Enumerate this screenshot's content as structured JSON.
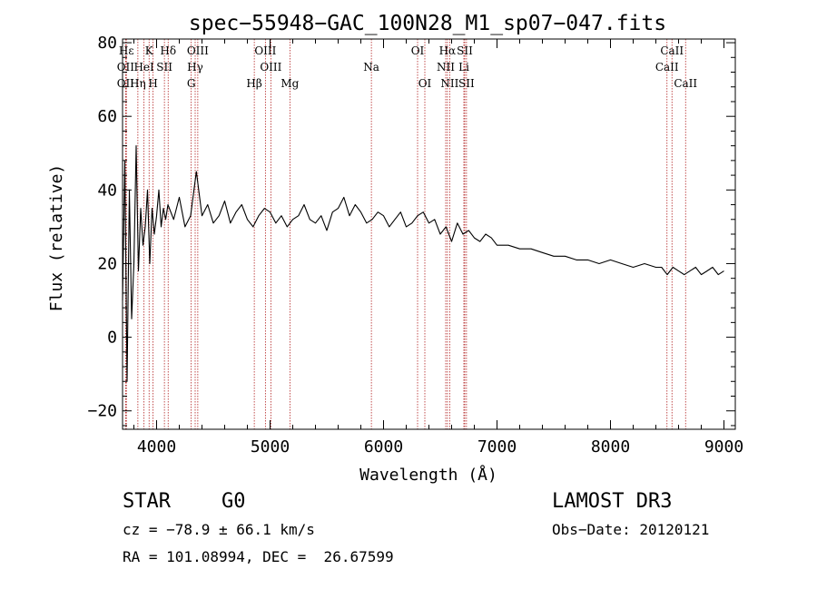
{
  "chart_data": {
    "type": "line",
    "title": "spec−55948−GAC_100N28_M1_sp07−047.fits",
    "xlabel": "Wavelength (Å)",
    "ylabel": "Flux (relative)",
    "xlim": [
      3700,
      9100
    ],
    "ylim": [
      -25,
      81
    ],
    "x_ticks": [
      4000,
      5000,
      6000,
      7000,
      8000,
      9000
    ],
    "y_ticks": [
      -20,
      0,
      20,
      40,
      60,
      80
    ],
    "x_tick_labels": [
      "4000",
      "5000",
      "6000",
      "7000",
      "8000",
      "9000"
    ],
    "y_tick_labels": [
      "−20",
      "0",
      "20",
      "40",
      "60",
      "80"
    ],
    "line_color": "#000000",
    "marker_color": "#b22222",
    "series": [
      {
        "name": "flux",
        "x": [
          3700,
          3720,
          3740,
          3760,
          3780,
          3800,
          3820,
          3840,
          3860,
          3880,
          3900,
          3920,
          3940,
          3960,
          3980,
          4000,
          4020,
          4040,
          4060,
          4080,
          4100,
          4150,
          4200,
          4250,
          4300,
          4350,
          4400,
          4450,
          4500,
          4550,
          4600,
          4650,
          4700,
          4750,
          4800,
          4850,
          4900,
          4950,
          5000,
          5050,
          5100,
          5150,
          5200,
          5250,
          5300,
          5350,
          5400,
          5450,
          5500,
          5550,
          5600,
          5650,
          5700,
          5750,
          5800,
          5850,
          5900,
          5950,
          6000,
          6050,
          6100,
          6150,
          6200,
          6250,
          6300,
          6350,
          6400,
          6450,
          6500,
          6550,
          6600,
          6650,
          6700,
          6750,
          6800,
          6850,
          6900,
          6950,
          7000,
          7100,
          7200,
          7300,
          7400,
          7500,
          7600,
          7700,
          7800,
          7900,
          8000,
          8100,
          8200,
          8300,
          8400,
          8450,
          8500,
          8550,
          8600,
          8650,
          8700,
          8750,
          8800,
          8850,
          8900,
          8950,
          9000
        ],
        "y": [
          10,
          48,
          -12,
          40,
          5,
          20,
          52,
          18,
          35,
          25,
          30,
          40,
          20,
          35,
          28,
          33,
          40,
          30,
          35,
          32,
          36,
          32,
          38,
          30,
          33,
          45,
          33,
          36,
          31,
          33,
          37,
          31,
          34,
          36,
          32,
          30,
          33,
          35,
          34,
          31,
          33,
          30,
          32,
          33,
          36,
          32,
          31,
          33,
          29,
          34,
          35,
          38,
          33,
          36,
          34,
          31,
          32,
          34,
          33,
          30,
          32,
          34,
          30,
          31,
          33,
          34,
          31,
          32,
          28,
          30,
          26,
          31,
          28,
          29,
          27,
          26,
          28,
          27,
          25,
          25,
          24,
          24,
          23,
          22,
          22,
          21,
          21,
          20,
          21,
          20,
          19,
          20,
          19,
          19,
          17,
          19,
          18,
          17,
          18,
          19,
          17,
          18,
          19,
          17,
          18
        ]
      }
    ],
    "lines": [
      {
        "label": "Hε",
        "x": 3734,
        "row": 1
      },
      {
        "label": "OII",
        "x": 3727,
        "row": 2
      },
      {
        "label": "OII",
        "x": 3727,
        "row": 3
      },
      {
        "label": "K",
        "x": 3934,
        "row": 1
      },
      {
        "label": "H",
        "x": 3969,
        "row": 3
      },
      {
        "label": "HeI",
        "x": 3889,
        "row": 2
      },
      {
        "label": "Hη",
        "x": 3835,
        "row": 3
      },
      {
        "label": "SII",
        "x": 4069,
        "row": 2
      },
      {
        "label": "Hδ",
        "x": 4102,
        "row": 1
      },
      {
        "label": "OIII",
        "x": 4363,
        "row": 1
      },
      {
        "label": "Hγ",
        "x": 4340,
        "row": 2
      },
      {
        "label": "G",
        "x": 4305,
        "row": 3
      },
      {
        "label": "OIII",
        "x": 4959,
        "row": 1
      },
      {
        "label": "OIII",
        "x": 5007,
        "row": 2
      },
      {
        "label": "Hβ",
        "x": 4861,
        "row": 3
      },
      {
        "label": "Mg",
        "x": 5175,
        "row": 3
      },
      {
        "label": "Na",
        "x": 5893,
        "row": 2
      },
      {
        "label": "OI",
        "x": 6300,
        "row": 1
      },
      {
        "label": "OI",
        "x": 6364,
        "row": 3
      },
      {
        "label": "Hα",
        "x": 6563,
        "row": 1
      },
      {
        "label": "NII",
        "x": 6548,
        "row": 2
      },
      {
        "label": "NII",
        "x": 6583,
        "row": 3
      },
      {
        "label": "SII",
        "x": 6716,
        "row": 1
      },
      {
        "label": "Li",
        "x": 6708,
        "row": 2
      },
      {
        "label": "SII",
        "x": 6731,
        "row": 3
      },
      {
        "label": "CaII",
        "x": 8542,
        "row": 1
      },
      {
        "label": "CaII",
        "x": 8498,
        "row": 2
      },
      {
        "label": "CaII",
        "x": 8662,
        "row": 3
      }
    ]
  },
  "info": {
    "class_label": "STAR",
    "subclass": "G0",
    "survey": "LAMOST DR3",
    "cz": "cz = −78.9 ± 66.1 km/s",
    "obs_date": "Obs−Date: 20120121",
    "coords": "RA = 101.08994, DEC =  26.67599"
  }
}
